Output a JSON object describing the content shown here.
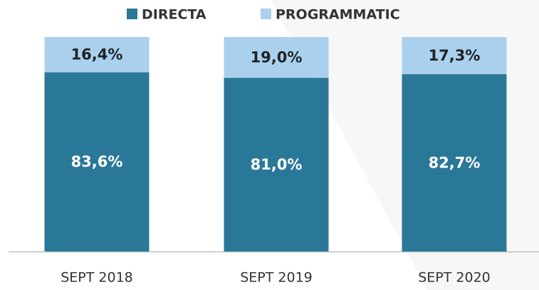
{
  "chart_data": {
    "type": "stacked_bar",
    "categories": [
      "SEPT 2018",
      "SEPT 2019",
      "SEPT 2020"
    ],
    "series": [
      {
        "name": "DIRECTA",
        "color": "#2a7898",
        "values": [
          83.6,
          81.0,
          82.7
        ],
        "value_labels": [
          "83,6%",
          "81,0%",
          "82,7%"
        ]
      },
      {
        "name": "PROGRAMMATIC",
        "color": "#a9d1ee",
        "values": [
          16.4,
          19.0,
          17.3
        ],
        "value_labels": [
          "16,4%",
          "19,0%",
          "17,3%"
        ]
      }
    ]
  }
}
